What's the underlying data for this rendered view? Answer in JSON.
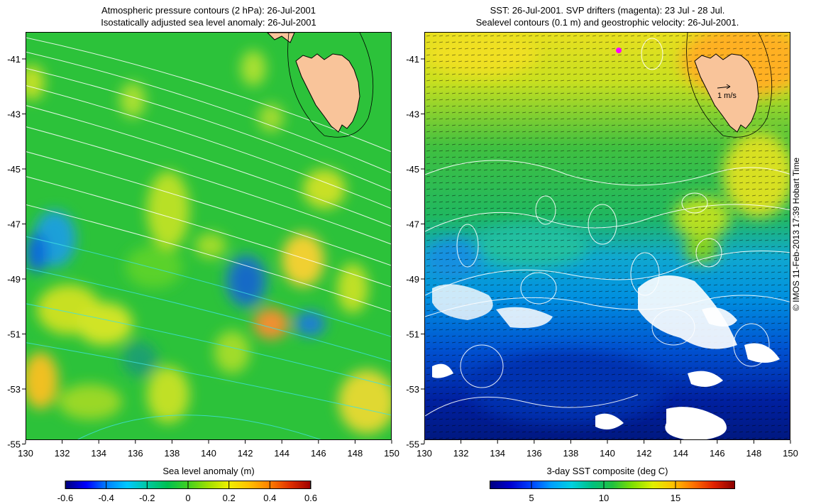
{
  "left_panel": {
    "title_line1": "Atmospheric pressure contours (2 hPa): 26-Jul-2001",
    "title_line2": "Isostatically adjusted sea level anomaly: 26-Jul-2001",
    "colorbar_title": "Sea level anomaly (m)",
    "colorbar_ticks": [
      "-0.6",
      "-0.4",
      "-0.2",
      "0",
      "0.2",
      "0.4",
      "0.6"
    ]
  },
  "right_panel": {
    "title_line1": "SST: 26-Jul-2001. SVP drifters (magenta): 23 Jul - 28 Jul.",
    "title_line2": "Sealevel contours (0.1 m) and geostrophic velocity: 26-Jul-2001.",
    "velocity_key": "1 m/s",
    "colorbar_title": "3-day SST composite (deg C)",
    "colorbar_ticks": [
      "5",
      "10",
      "15"
    ]
  },
  "axes": {
    "x_ticks": [
      "130",
      "132",
      "134",
      "136",
      "138",
      "140",
      "142",
      "144",
      "146",
      "148",
      "150"
    ],
    "y_ticks": [
      "-41",
      "-43",
      "-45",
      "-47",
      "-49",
      "-51",
      "-53",
      "-55"
    ]
  },
  "copyright": "© IMOS 11-Feb-2013 17:39 Hobart Time",
  "colors": {
    "land": "#f9c49a",
    "drifter": "#ff00ff",
    "contour_white": "#ffffff",
    "contour_cyan": "#40e0e0"
  }
}
